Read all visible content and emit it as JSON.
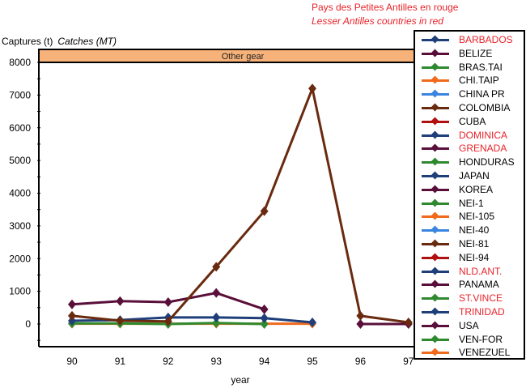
{
  "notes": {
    "fr": "Pays des Petites Antilles en rouge",
    "en": "Lesser Antilles countries in red"
  },
  "chart_data": {
    "type": "line",
    "title": "",
    "panel_label": "Other gear",
    "ylabel_fr": "Captures (t)",
    "ylabel_en": "Catches (MT)",
    "xlabel": "year",
    "x": [
      90,
      91,
      92,
      93,
      94,
      95,
      96,
      97
    ],
    "ylim": [
      -800,
      8000
    ],
    "yticks": [
      0,
      1000,
      2000,
      3000,
      4000,
      5000,
      6000,
      7000,
      8000
    ],
    "legend_placement": "right",
    "legend": [
      {
        "name": "BARBADOS",
        "color": "#1f3f7a",
        "red": true
      },
      {
        "name": "BELIZE",
        "color": "#5a0f3a",
        "red": false
      },
      {
        "name": "BRAS.TAI",
        "color": "#2f8a2f",
        "red": false
      },
      {
        "name": "CHI.TAIP",
        "color": "#f06a1c",
        "red": false
      },
      {
        "name": "CHINA PR",
        "color": "#3a85e0",
        "red": false
      },
      {
        "name": "COLOMBIA",
        "color": "#6a2a0f",
        "red": false
      },
      {
        "name": "CUBA",
        "color": "#b01010",
        "red": false
      },
      {
        "name": "DOMINICA",
        "color": "#1f3f7a",
        "red": true
      },
      {
        "name": "GRENADA",
        "color": "#5a0f3a",
        "red": true
      },
      {
        "name": "HONDURAS",
        "color": "#2f8a2f",
        "red": false
      },
      {
        "name": "JAPAN",
        "color": "#1f3f7a",
        "red": false
      },
      {
        "name": "KOREA",
        "color": "#5a0f3a",
        "red": false
      },
      {
        "name": "NEI-1",
        "color": "#2f8a2f",
        "red": false
      },
      {
        "name": "NEI-105",
        "color": "#f06a1c",
        "red": false
      },
      {
        "name": "NEI-40",
        "color": "#3a85e0",
        "red": false
      },
      {
        "name": "NEI-81",
        "color": "#6a2a0f",
        "red": false
      },
      {
        "name": "NEI-94",
        "color": "#b01010",
        "red": false
      },
      {
        "name": "NLD.ANT.",
        "color": "#1f3f7a",
        "red": true
      },
      {
        "name": "PANAMA",
        "color": "#5a0f3a",
        "red": false
      },
      {
        "name": "ST.VINCE",
        "color": "#2f8a2f",
        "red": true
      },
      {
        "name": "TRINIDAD",
        "color": "#1f3f7a",
        "red": true
      },
      {
        "name": "USA",
        "color": "#5a0f3a",
        "red": false
      },
      {
        "name": "VEN-FOR",
        "color": "#2f8a2f",
        "red": false
      },
      {
        "name": "VENEZUEL",
        "color": "#f06a1c",
        "red": false
      }
    ],
    "series": [
      {
        "name": "COLOMBIA",
        "color": "#6a2a0f",
        "values": [
          250,
          100,
          80,
          1750,
          3450,
          7200,
          250,
          50
        ]
      },
      {
        "name": "USA",
        "color": "#5a0f3a",
        "values": [
          600,
          700,
          670,
          950,
          450,
          null,
          0,
          0
        ]
      },
      {
        "name": "TRINIDAD",
        "color": "#1f3f7a",
        "values": [
          100,
          120,
          200,
          200,
          180,
          50,
          null,
          null
        ]
      },
      {
        "name": "HONDURAS",
        "color": "#2f8a2f",
        "values": [
          20,
          20,
          0,
          30,
          0,
          null,
          null,
          null
        ]
      },
      {
        "name": "VENEZUEL",
        "color": "#f06a1c",
        "values": [
          10,
          10,
          10,
          10,
          10,
          10,
          null,
          null
        ]
      }
    ]
  }
}
